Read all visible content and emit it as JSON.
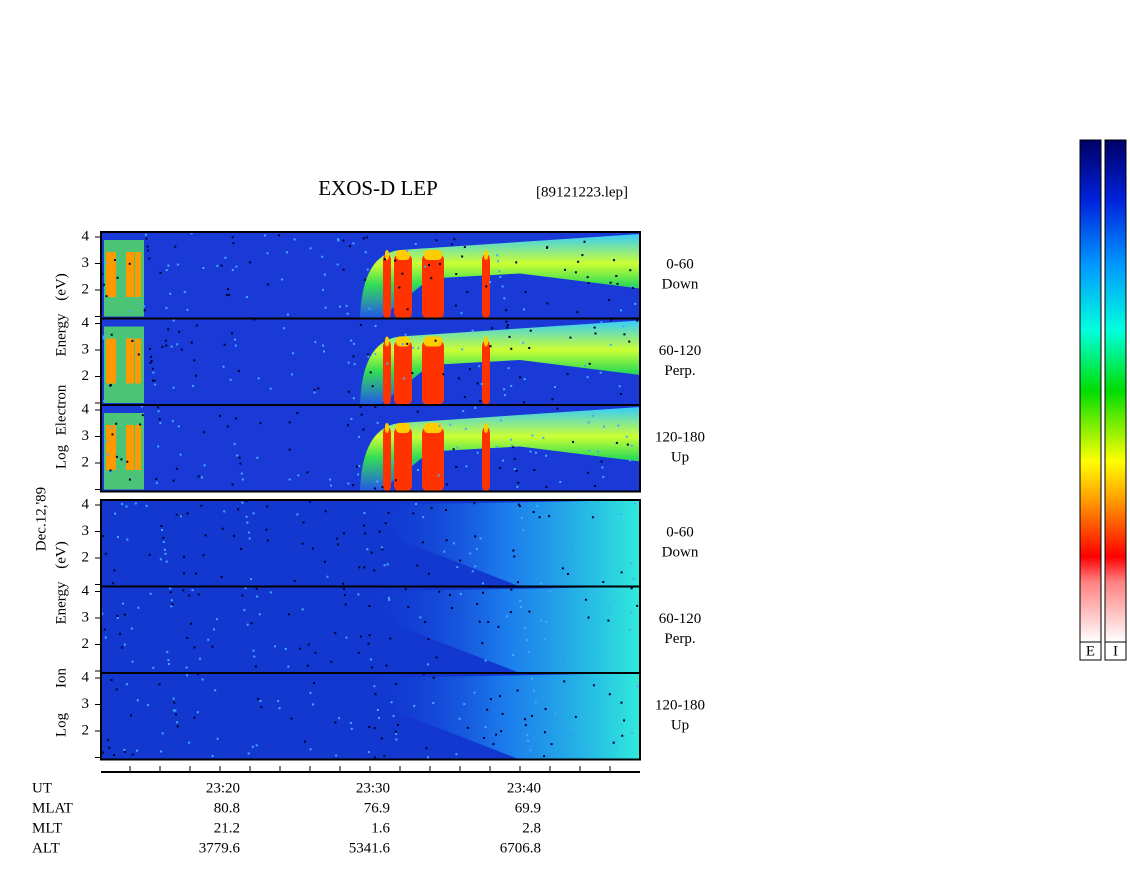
{
  "header": {
    "title": "EXOS-D LEP",
    "file": "[89121223.lep]"
  },
  "date_label": "Dec.12,'89",
  "yticks": [
    2,
    3,
    4
  ],
  "groups": [
    {
      "label_words": [
        "Log",
        "Electron",
        "Energy",
        "(eV)"
      ],
      "panels": [
        {
          "angle": "0-60",
          "direction": "Down"
        },
        {
          "angle": "60-120",
          "direction": "Perp."
        },
        {
          "angle": "120-180",
          "direction": "Up"
        }
      ]
    },
    {
      "label_words": [
        "Log",
        "Ion",
        "Energy",
        "(eV)"
      ],
      "panels": [
        {
          "angle": "0-60",
          "direction": "Down"
        },
        {
          "angle": "60-120",
          "direction": "Perp."
        },
        {
          "angle": "120-180",
          "direction": "Up"
        }
      ]
    }
  ],
  "ephemeris": [
    {
      "name": "UT",
      "values": [
        "23:20",
        "23:30",
        "23:40"
      ]
    },
    {
      "name": "MLAT",
      "values": [
        80.8,
        76.9,
        69.9
      ]
    },
    {
      "name": "MLT",
      "values": [
        21.2,
        1.6,
        2.8
      ]
    },
    {
      "name": "ALT",
      "values": [
        3779.6,
        5341.6,
        6706.8
      ]
    }
  ],
  "colorbar_labels": [
    "E",
    "I"
  ]
}
